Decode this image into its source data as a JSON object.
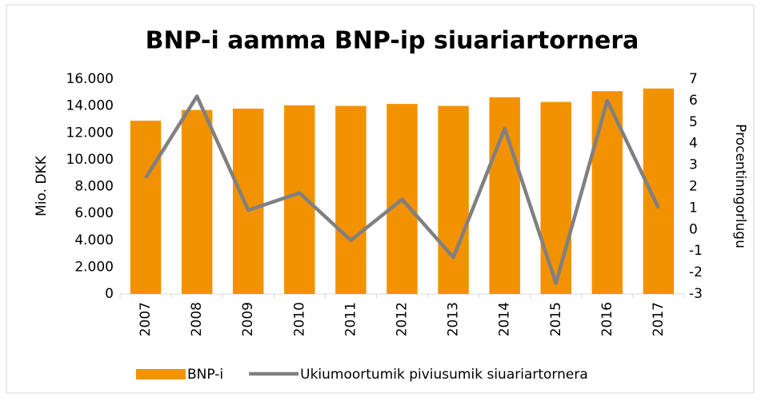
{
  "chart_data": {
    "type": "bar",
    "title": "BNP-i aamma BNP-ip siuariartornera",
    "y_label": "Mio. DKK",
    "y2_label": "Procentinngorlugu",
    "categories": [
      "2007",
      "2008",
      "2009",
      "2010",
      "2011",
      "2012",
      "2013",
      "2014",
      "2015",
      "2016",
      "2017"
    ],
    "series": [
      {
        "name": "BNP-i",
        "type": "bar",
        "color": "#f39200",
        "values": [
          12900,
          13700,
          13800,
          14050,
          14000,
          14150,
          14000,
          14650,
          14300,
          15100,
          15300
        ]
      },
      {
        "name": "Ukiumoortumik piviusumik siuariartornera",
        "type": "line",
        "axis": "y2",
        "color": "#808080",
        "values": [
          2.4,
          6.2,
          0.9,
          1.7,
          -0.5,
          1.4,
          -1.3,
          4.7,
          -2.5,
          6.0,
          1.0
        ]
      }
    ],
    "ylim": [
      0,
      16000
    ],
    "yticks": [
      0,
      {
        "value": 2000,
        "label": "2.000"
      },
      {
        "value": 4000,
        "label": "4.000"
      },
      {
        "value": 6000,
        "label": "6.000"
      },
      {
        "value": 8000,
        "label": "8.000"
      },
      {
        "value": 10000,
        "label": "10.000"
      },
      {
        "value": 12000,
        "label": "12.000"
      },
      {
        "value": 14000,
        "label": "14.000"
      },
      {
        "value": 16000,
        "label": "16.000"
      }
    ],
    "y2lim": [
      -3,
      7
    ],
    "y2ticks": [
      -3,
      -2,
      -1,
      0,
      1,
      2,
      3,
      4,
      5,
      6,
      7
    ],
    "legend": "bottom"
  }
}
